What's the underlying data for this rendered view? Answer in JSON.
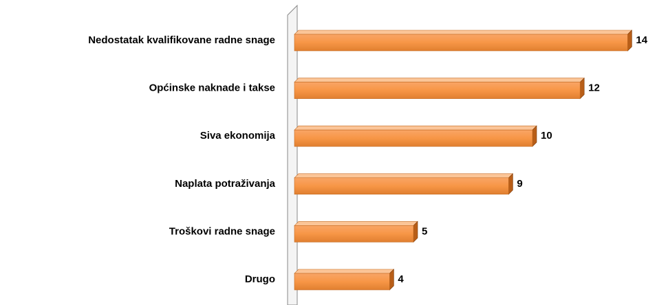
{
  "chart_data": {
    "type": "bar",
    "orientation": "horizontal",
    "categories": [
      "Nedostatak kvalifikovane radne snage",
      "Općinske naknade i takse",
      "Siva ekonomija",
      "Naplata potraživanja",
      "Troškovi radne snage",
      "Drugo"
    ],
    "values": [
      14,
      12,
      10,
      9,
      5,
      4
    ],
    "color": "#f79646"
  }
}
